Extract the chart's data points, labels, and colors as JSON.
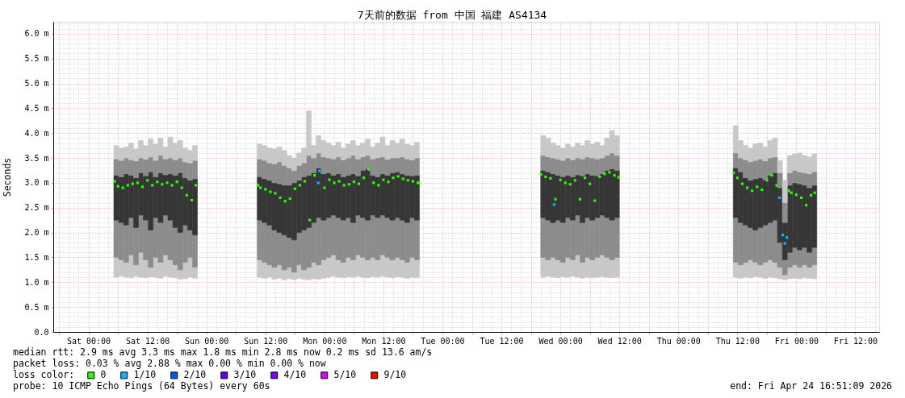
{
  "chart_data": {
    "type": "bar",
    "title": "7天前的数据 from 中国 福建 AS4134",
    "ylabel": "Seconds",
    "legend_title": "loss color:",
    "legend": "bottom left",
    "grid": true,
    "marker": "square",
    "annotations": [
      "median rtt:  2.9 ms avg  3.3 ms max  1.8 ms min  2.8 ms now  0.2 ms sd  13.6   am/s",
      "packet loss: 0.03 % avg  2.88 % max  0.00 % min  0.00 % now",
      "probe:       10 ICMP Echo Pings (64 Bytes) every 60s",
      "end: Fri Apr 24 16:51:09 2026"
    ],
    "xlim": [
      "2026-04-17T16:51",
      "2026-04-24T16:51"
    ],
    "xticks": [
      {
        "value": "2026-04-17T18:00",
        "label": null
      },
      {
        "value": "2026-04-18T00:00",
        "label": "Sat 00:00"
      },
      {
        "value": "2026-04-18T06:00",
        "label": null
      },
      {
        "value": "2026-04-18T12:00",
        "label": "Sat 12:00"
      },
      {
        "value": "2026-04-18T18:00",
        "label": null
      },
      {
        "value": "2026-04-19T00:00",
        "label": "Sun 00:00"
      },
      {
        "value": "2026-04-19T06:00",
        "label": null
      },
      {
        "value": "2026-04-19T12:00",
        "label": "Sun 12:00"
      },
      {
        "value": "2026-04-19T18:00",
        "label": null
      },
      {
        "value": "2026-04-20T00:00",
        "label": "Mon 00:00"
      },
      {
        "value": "2026-04-20T06:00",
        "label": null
      },
      {
        "value": "2026-04-20T12:00",
        "label": "Mon 12:00"
      },
      {
        "value": "2026-04-20T18:00",
        "label": null
      },
      {
        "value": "2026-04-21T00:00",
        "label": "Tue 00:00"
      },
      {
        "value": "2026-04-21T06:00",
        "label": null
      },
      {
        "value": "2026-04-21T12:00",
        "label": "Tue 12:00"
      },
      {
        "value": "2026-04-21T18:00",
        "label": null
      },
      {
        "value": "2026-04-22T00:00",
        "label": "Wed 00:00"
      },
      {
        "value": "2026-04-22T06:00",
        "label": null
      },
      {
        "value": "2026-04-22T12:00",
        "label": "Wed 12:00"
      },
      {
        "value": "2026-04-22T18:00",
        "label": null
      },
      {
        "value": "2026-04-23T00:00",
        "label": "Thu 00:00"
      },
      {
        "value": "2026-04-23T06:00",
        "label": null
      },
      {
        "value": "2026-04-23T12:00",
        "label": "Thu 12:00"
      },
      {
        "value": "2026-04-23T18:00",
        "label": null
      },
      {
        "value": "2026-04-24T00:00",
        "label": "Fri 00:00"
      },
      {
        "value": "2026-04-24T06:00",
        "label": null
      },
      {
        "value": "2026-04-24T12:00",
        "label": "Fri 12:00"
      }
    ],
    "ylim": [
      0,
      6.24
    ],
    "yticks": [
      {
        "value": 0,
        "label": "0.0"
      },
      {
        "value": 0.5,
        "label": "0.5 m"
      },
      {
        "value": 1.0,
        "label": "1.0 m"
      },
      {
        "value": 1.5,
        "label": "1.5 m"
      },
      {
        "value": 2.0,
        "label": "2.0 m"
      },
      {
        "value": 2.5,
        "label": "2.5 m"
      },
      {
        "value": 3.0,
        "label": "3.0 m"
      },
      {
        "value": 3.5,
        "label": "3.5 m"
      },
      {
        "value": 4.0,
        "label": "4.0 m"
      },
      {
        "value": 4.5,
        "label": "4.5 m"
      },
      {
        "value": 5.0,
        "label": "5.0 m"
      },
      {
        "value": 5.5,
        "label": "5.5 m"
      },
      {
        "value": 6.0,
        "label": "6.0 m"
      }
    ],
    "x": [
      "2026-04-18T05:40",
      "2026-04-18T06:40",
      "2026-04-18T07:40",
      "2026-04-18T08:40",
      "2026-04-18T09:40",
      "2026-04-18T10:40",
      "2026-04-18T11:40",
      "2026-04-18T12:40",
      "2026-04-18T13:40",
      "2026-04-18T14:40",
      "2026-04-18T15:40",
      "2026-04-18T16:40",
      "2026-04-18T17:40",
      "2026-04-18T18:40",
      "2026-04-18T19:40",
      "2026-04-18T20:40",
      "2026-04-18T21:40",
      "2026-04-19T10:50",
      "2026-04-19T11:50",
      "2026-04-19T12:50",
      "2026-04-19T13:50",
      "2026-04-19T14:50",
      "2026-04-19T15:50",
      "2026-04-19T16:50",
      "2026-04-19T17:50",
      "2026-04-19T18:50",
      "2026-04-19T19:50",
      "2026-04-19T20:50",
      "2026-04-19T21:50",
      "2026-04-19T22:50",
      "2026-04-19T23:50",
      "2026-04-20T00:50",
      "2026-04-20T01:50",
      "2026-04-20T02:50",
      "2026-04-20T03:50",
      "2026-04-20T04:50",
      "2026-04-20T05:50",
      "2026-04-20T06:50",
      "2026-04-20T07:50",
      "2026-04-20T08:50",
      "2026-04-20T09:50",
      "2026-04-20T10:50",
      "2026-04-20T11:50",
      "2026-04-20T12:50",
      "2026-04-20T13:50",
      "2026-04-20T14:50",
      "2026-04-20T15:50",
      "2026-04-20T16:50",
      "2026-04-20T17:50",
      "2026-04-20T18:50",
      "2026-04-21T20:30",
      "2026-04-21T21:30",
      "2026-04-21T22:30",
      "2026-04-21T23:30",
      "2026-04-22T00:30",
      "2026-04-22T01:30",
      "2026-04-22T02:30",
      "2026-04-22T03:30",
      "2026-04-22T04:30",
      "2026-04-22T05:30",
      "2026-04-22T06:30",
      "2026-04-22T07:30",
      "2026-04-22T08:30",
      "2026-04-22T09:30",
      "2026-04-22T10:30",
      "2026-04-22T11:30",
      "2026-04-23T11:40",
      "2026-04-23T12:40",
      "2026-04-23T13:40",
      "2026-04-23T14:40",
      "2026-04-23T15:40",
      "2026-04-23T16:40",
      "2026-04-23T17:40",
      "2026-04-23T18:40",
      "2026-04-23T19:40",
      "2026-04-23T20:40",
      "2026-04-23T21:40",
      "2026-04-23T22:40",
      "2026-04-23T23:40",
      "2026-04-24T00:40",
      "2026-04-24T01:40",
      "2026-04-24T02:40",
      "2026-04-24T03:40"
    ],
    "series": [
      {
        "color": "#c8c8c8",
        "base": [
          1.1,
          1.12,
          1.1,
          1.09,
          1.12,
          1.1,
          1.09,
          1.11,
          1.1,
          1.08,
          1.12,
          1.1,
          1.09,
          1.06,
          1.07,
          1.1,
          1.08,
          1.1,
          1.08,
          1.1,
          1.06,
          1.08,
          1.05,
          1.07,
          1.05,
          1.08,
          1.06,
          1.05,
          1.07,
          1.06,
          1.08,
          1.1,
          1.12,
          1.1,
          1.09,
          1.11,
          1.1,
          1.12,
          1.1,
          1.09,
          1.11,
          1.1,
          1.12,
          1.1,
          1.09,
          1.11,
          1.1,
          1.08,
          1.1,
          1.09,
          1.1,
          1.12,
          1.1,
          1.09,
          1.11,
          1.1,
          1.12,
          1.1,
          1.08,
          1.1,
          1.09,
          1.1,
          1.11,
          1.1,
          1.09,
          1.1,
          1.1,
          1.08,
          1.1,
          1.09,
          1.11,
          1.1,
          1.08,
          1.1,
          1.09,
          1.07,
          1.05,
          1.07,
          1.08,
          1.07,
          1.09,
          1.08,
          1.07
        ],
        "values": [
          0.4,
          0.33,
          0.3,
          0.46,
          0.23,
          0.5,
          0.36,
          0.19,
          0.4,
          0.32,
          0.43,
          0.35,
          0.26,
          0.19,
          0.33,
          0.4,
          0.22,
          0.35,
          0.32,
          0.25,
          0.24,
          0.27,
          0.2,
          0.23,
          0.15,
          0.27,
          0.19,
          0.25,
          0.33,
          0.29,
          0.37,
          0.4,
          0.43,
          0.35,
          0.31,
          0.39,
          0.35,
          0.43,
          0.4,
          0.36,
          0.39,
          0.35,
          0.43,
          0.4,
          0.36,
          0.39,
          0.35,
          0.32,
          0.4,
          0.36,
          0.4,
          0.33,
          0.4,
          0.36,
          0.29,
          0.4,
          0.33,
          0.45,
          0.32,
          0.4,
          0.36,
          0.4,
          0.44,
          0.4,
          0.36,
          0.4,
          0.3,
          0.27,
          0.3,
          0.36,
          0.29,
          0.25,
          0.32,
          0.35,
          0.31,
          0.23,
          0.1,
          0.23,
          0.27,
          0.23,
          0.26,
          0.22,
          0.28
        ]
      },
      {
        "color": "#8c8c8c",
        "base": [
          1.5,
          1.45,
          1.4,
          1.55,
          1.35,
          1.6,
          1.45,
          1.3,
          1.5,
          1.4,
          1.55,
          1.45,
          1.35,
          1.25,
          1.4,
          1.5,
          1.3,
          1.45,
          1.4,
          1.35,
          1.3,
          1.35,
          1.25,
          1.3,
          1.2,
          1.35,
          1.25,
          1.3,
          1.4,
          1.35,
          1.45,
          1.5,
          1.55,
          1.45,
          1.4,
          1.5,
          1.45,
          1.55,
          1.5,
          1.45,
          1.5,
          1.45,
          1.55,
          1.5,
          1.45,
          1.5,
          1.45,
          1.4,
          1.5,
          1.45,
          1.5,
          1.45,
          1.5,
          1.45,
          1.4,
          1.5,
          1.45,
          1.55,
          1.4,
          1.5,
          1.45,
          1.5,
          1.55,
          1.5,
          1.45,
          1.5,
          1.4,
          1.35,
          1.4,
          1.45,
          1.4,
          1.35,
          1.4,
          1.45,
          1.4,
          1.3,
          1.15,
          1.3,
          1.35,
          1.3,
          1.35,
          1.3,
          1.35
        ],
        "values": [
          0.75,
          0.75,
          0.75,
          0.75,
          0.75,
          0.75,
          0.8,
          0.75,
          0.8,
          0.8,
          0.8,
          0.8,
          0.75,
          0.75,
          0.75,
          0.55,
          0.65,
          0.8,
          0.8,
          0.8,
          0.75,
          0.65,
          0.7,
          0.6,
          0.65,
          0.65,
          0.8,
          0.8,
          0.8,
          0.95,
          0.8,
          0.8,
          0.8,
          0.85,
          0.85,
          0.8,
          0.75,
          0.8,
          0.8,
          0.8,
          0.85,
          0.85,
          0.8,
          0.8,
          0.8,
          0.8,
          0.8,
          0.8,
          0.8,
          0.8,
          0.8,
          0.8,
          0.7,
          0.8,
          0.8,
          0.8,
          0.8,
          0.8,
          0.8,
          0.8,
          0.8,
          0.8,
          0.8,
          0.8,
          0.8,
          0.8,
          0.9,
          0.85,
          0.75,
          0.65,
          0.65,
          0.75,
          0.75,
          0.75,
          0.85,
          0.5,
          0.3,
          0.3,
          0.35,
          0.35,
          0.35,
          0.3,
          0.35
        ]
      },
      {
        "color": "#363636",
        "base": [
          2.25,
          2.2,
          2.15,
          2.3,
          2.1,
          2.35,
          2.25,
          2.05,
          2.3,
          2.2,
          2.35,
          2.25,
          2.1,
          2.0,
          2.15,
          2.05,
          1.95,
          2.25,
          2.2,
          2.15,
          2.05,
          2.0,
          1.95,
          1.9,
          1.85,
          2.0,
          2.05,
          2.1,
          2.2,
          2.3,
          2.25,
          2.3,
          2.35,
          2.3,
          2.25,
          2.3,
          2.2,
          2.35,
          2.3,
          2.25,
          2.35,
          2.3,
          2.35,
          2.3,
          2.25,
          2.3,
          2.25,
          2.2,
          2.3,
          2.25,
          2.3,
          2.25,
          2.2,
          2.25,
          2.2,
          2.3,
          2.25,
          2.35,
          2.2,
          2.3,
          2.25,
          2.3,
          2.35,
          2.3,
          2.25,
          2.3,
          2.3,
          2.2,
          2.15,
          2.1,
          2.05,
          2.1,
          2.15,
          2.2,
          2.25,
          1.8,
          1.45,
          1.6,
          1.7,
          1.65,
          1.7,
          1.6,
          1.7
        ],
        "values": [
          0.9,
          0.92,
          1.03,
          0.85,
          1.0,
          0.85,
          0.89,
          1.17,
          0.82,
          1.0,
          0.81,
          0.93,
          1.05,
          1.2,
          0.95,
          1.0,
          1.13,
          0.87,
          0.88,
          0.9,
          0.95,
          0.98,
          1.0,
          1.05,
          1.15,
          1.05,
          1.07,
          1.05,
          1.0,
          1.0,
          0.93,
          0.9,
          0.8,
          0.88,
          0.87,
          0.85,
          0.98,
          0.79,
          0.95,
          1.03,
          0.8,
          0.82,
          0.83,
          0.85,
          0.95,
          0.92,
          0.93,
          0.95,
          0.84,
          0.9,
          0.95,
          0.97,
          0.98,
          0.9,
          0.92,
          0.85,
          0.87,
          0.81,
          0.94,
          0.88,
          0.9,
          0.84,
          0.83,
          0.95,
          1.03,
          0.95,
          1.0,
          1.02,
          0.95,
          0.95,
          1.03,
          1.0,
          0.91,
          0.95,
          0.95,
          1.1,
          0.75,
          1.35,
          1.3,
          1.33,
          1.25,
          1.3,
          1.25
        ]
      },
      {
        "color": "#8c8c8c",
        "base": [
          3.15,
          3.12,
          3.18,
          3.15,
          3.1,
          3.2,
          3.14,
          3.22,
          3.12,
          3.2,
          3.16,
          3.18,
          3.15,
          3.2,
          3.1,
          3.05,
          3.08,
          3.12,
          3.08,
          3.05,
          3.0,
          2.98,
          2.95,
          2.95,
          3.0,
          3.05,
          3.12,
          3.15,
          3.2,
          3.3,
          3.18,
          3.2,
          3.15,
          3.18,
          3.12,
          3.15,
          3.18,
          3.14,
          3.25,
          3.28,
          3.15,
          3.12,
          3.18,
          3.15,
          3.2,
          3.22,
          3.18,
          3.15,
          3.14,
          3.15,
          3.25,
          3.22,
          3.18,
          3.15,
          3.12,
          3.15,
          3.12,
          3.16,
          3.14,
          3.18,
          3.15,
          3.14,
          3.18,
          3.25,
          3.28,
          3.25,
          3.3,
          3.22,
          3.1,
          3.05,
          3.08,
          3.1,
          3.06,
          3.15,
          3.2,
          2.9,
          2.2,
          2.95,
          3.0,
          2.98,
          2.95,
          2.9,
          2.95
        ],
        "values": [
          0.33,
          0.33,
          0.32,
          0.31,
          0.34,
          0.3,
          0.33,
          0.3,
          0.33,
          0.35,
          0.32,
          0.32,
          0.31,
          0.3,
          0.32,
          0.35,
          0.37,
          0.36,
          0.37,
          0.35,
          0.38,
          0.44,
          0.4,
          0.35,
          0.25,
          0.3,
          0.28,
          0.4,
          0.3,
          0.3,
          0.34,
          0.3,
          0.33,
          0.34,
          0.34,
          0.35,
          0.37,
          0.34,
          0.27,
          0.27,
          0.33,
          0.38,
          0.34,
          0.32,
          0.3,
          0.28,
          0.34,
          0.33,
          0.32,
          0.35,
          0.3,
          0.3,
          0.32,
          0.33,
          0.33,
          0.35,
          0.34,
          0.34,
          0.34,
          0.34,
          0.35,
          0.34,
          0.32,
          0.3,
          0.32,
          0.3,
          0.3,
          0.28,
          0.36,
          0.37,
          0.37,
          0.38,
          0.38,
          0.35,
          0.32,
          0.3,
          0.4,
          0.25,
          0.25,
          0.24,
          0.25,
          0.28,
          0.27
        ]
      },
      {
        "color": "#c8c8c8",
        "base": [
          3.48,
          3.45,
          3.5,
          3.46,
          3.44,
          3.5,
          3.47,
          3.52,
          3.45,
          3.55,
          3.48,
          3.5,
          3.46,
          3.5,
          3.42,
          3.4,
          3.45,
          3.48,
          3.45,
          3.4,
          3.38,
          3.42,
          3.35,
          3.3,
          3.25,
          3.35,
          3.4,
          3.55,
          3.5,
          3.6,
          3.52,
          3.5,
          3.48,
          3.52,
          3.46,
          3.5,
          3.55,
          3.48,
          3.52,
          3.55,
          3.48,
          3.5,
          3.52,
          3.47,
          3.5,
          3.5,
          3.52,
          3.48,
          3.46,
          3.5,
          3.55,
          3.52,
          3.5,
          3.48,
          3.45,
          3.5,
          3.46,
          3.5,
          3.48,
          3.52,
          3.5,
          3.48,
          3.5,
          3.55,
          3.6,
          3.55,
          3.6,
          3.5,
          3.46,
          3.42,
          3.45,
          3.48,
          3.44,
          3.5,
          3.52,
          3.2,
          2.6,
          3.2,
          3.25,
          3.22,
          3.2,
          3.18,
          3.22
        ],
        "values": [
          0.27,
          0.25,
          0.22,
          0.34,
          0.24,
          0.35,
          0.28,
          0.36,
          0.33,
          0.35,
          0.24,
          0.42,
          0.34,
          0.35,
          0.28,
          0.25,
          0.3,
          0.3,
          0.3,
          0.3,
          0.3,
          0.3,
          0.3,
          0.25,
          0.25,
          0.25,
          0.3,
          0.9,
          0.25,
          0.35,
          0.33,
          0.3,
          0.27,
          0.3,
          0.24,
          0.28,
          0.3,
          0.27,
          0.28,
          0.33,
          0.24,
          0.3,
          0.4,
          0.28,
          0.35,
          0.3,
          0.36,
          0.3,
          0.29,
          0.32,
          0.4,
          0.38,
          0.3,
          0.27,
          0.25,
          0.28,
          0.26,
          0.3,
          0.27,
          0.33,
          0.28,
          0.34,
          0.25,
          0.35,
          0.45,
          0.4,
          0.55,
          0.35,
          0.29,
          0.28,
          0.33,
          0.32,
          0.28,
          0.35,
          0.38,
          0.25,
          0.45,
          0.35,
          0.33,
          0.38,
          0.35,
          0.34,
          0.36
        ]
      },
      {
        "name": "0",
        "type": "scatter",
        "color": "#26ff00",
        "x": [
          "2026-04-18T05:20",
          "2026-04-18T06:00",
          "2026-04-18T07:00",
          "2026-04-18T08:00",
          "2026-04-18T09:00",
          "2026-04-18T10:00",
          "2026-04-18T11:00",
          "2026-04-18T12:00",
          "2026-04-18T13:00",
          "2026-04-18T14:00",
          "2026-04-18T15:00",
          "2026-04-18T16:00",
          "2026-04-18T17:00",
          "2026-04-18T18:00",
          "2026-04-18T19:00",
          "2026-04-18T20:00",
          "2026-04-18T21:00",
          "2026-04-18T21:50",
          "2026-04-19T10:30",
          "2026-04-19T11:00",
          "2026-04-19T12:00",
          "2026-04-19T13:00",
          "2026-04-19T14:00",
          "2026-04-19T15:00",
          "2026-04-19T16:00",
          "2026-04-19T17:00",
          "2026-04-19T18:00",
          "2026-04-19T19:00",
          "2026-04-19T20:00",
          "2026-04-19T21:00",
          "2026-04-19T22:00",
          "2026-04-20T00:00",
          "2026-04-20T01:00",
          "2026-04-20T02:00",
          "2026-04-20T03:00",
          "2026-04-20T04:00",
          "2026-04-20T05:00",
          "2026-04-20T06:00",
          "2026-04-20T07:00",
          "2026-04-20T08:00",
          "2026-04-20T09:00",
          "2026-04-20T10:00",
          "2026-04-20T11:00",
          "2026-04-20T12:00",
          "2026-04-20T13:00",
          "2026-04-20T14:00",
          "2026-04-20T15:00",
          "2026-04-20T16:00",
          "2026-04-20T17:00",
          "2026-04-20T18:00",
          "2026-04-20T19:00",
          "2026-04-20T19:15",
          "2026-04-21T20:05",
          "2026-04-21T21:00",
          "2026-04-21T22:00",
          "2026-04-21T23:00",
          "2026-04-22T00:00",
          "2026-04-22T01:00",
          "2026-04-22T02:00",
          "2026-04-22T03:00",
          "2026-04-22T04:00",
          "2026-04-22T05:00",
          "2026-04-22T06:00",
          "2026-04-22T07:00",
          "2026-04-22T08:00",
          "2026-04-22T09:00",
          "2026-04-22T10:00",
          "2026-04-22T11:00",
          "2026-04-22T11:50",
          "2026-04-23T11:15",
          "2026-04-23T12:00",
          "2026-04-23T13:00",
          "2026-04-23T14:00",
          "2026-04-23T15:00",
          "2026-04-23T16:00",
          "2026-04-23T17:00",
          "2026-04-23T18:00",
          "2026-04-23T19:00",
          "2026-04-23T20:00",
          "2026-04-23T22:30",
          "2026-04-23T23:00",
          "2026-04-24T00:00",
          "2026-04-24T01:00",
          "2026-04-24T02:00",
          "2026-04-24T03:00",
          "2026-04-24T03:45"
        ],
        "values": [
          3.03,
          2.93,
          2.9,
          2.95,
          2.98,
          3.0,
          2.92,
          3.05,
          2.95,
          3.02,
          2.97,
          3.0,
          2.95,
          3.02,
          2.9,
          2.75,
          2.65,
          2.95,
          2.95,
          2.9,
          2.87,
          2.82,
          2.79,
          2.7,
          2.63,
          2.68,
          2.88,
          2.95,
          3.03,
          2.25,
          3.15,
          2.9,
          3.06,
          3.0,
          3.03,
          2.95,
          2.97,
          3.02,
          2.98,
          3.1,
          3.27,
          3.0,
          2.95,
          3.06,
          3.02,
          3.1,
          3.13,
          3.08,
          3.05,
          3.03,
          3.0,
          3.0,
          3.17,
          3.12,
          3.09,
          2.67,
          3.06,
          3.0,
          2.97,
          3.05,
          2.67,
          3.1,
          2.98,
          2.64,
          3.12,
          3.18,
          3.21,
          3.15,
          3.11,
          3.2,
          3.1,
          2.98,
          2.9,
          2.84,
          2.92,
          2.86,
          3.05,
          3.15,
          2.95,
          2.84,
          2.8,
          2.76,
          2.7,
          2.55,
          2.75,
          2.8
        ]
      },
      {
        "name": "1/10",
        "type": "scatter",
        "color": "#00b8ff",
        "x": [
          "2026-04-19T22:45",
          "2026-04-19T23:00",
          "2026-04-21T22:45",
          "2026-04-23T20:35",
          "2026-04-23T21:15",
          "2026-04-23T21:40",
          "2026-04-23T22:05"
        ],
        "values": [
          3.0,
          3.24,
          2.56,
          2.7,
          1.95,
          1.78,
          1.9
        ]
      },
      {
        "name": "2/10",
        "type": "scatter",
        "color": "#0059ff",
        "values": [
          null,
          null,
          null,
          null,
          null,
          null,
          null,
          null,
          null,
          null,
          null,
          null,
          null,
          null,
          null,
          null,
          null,
          null,
          null,
          null,
          null,
          null,
          null,
          null,
          null,
          null,
          null,
          null,
          null,
          null,
          null,
          null,
          null,
          null,
          null,
          null,
          null,
          null,
          null,
          null,
          null,
          null,
          null,
          null,
          null,
          null,
          null,
          null,
          null,
          null,
          null,
          null,
          null,
          null,
          null,
          null,
          null,
          null,
          null,
          null,
          null,
          null,
          null,
          null,
          null,
          null,
          null,
          null,
          null,
          null,
          null,
          null,
          null,
          null,
          null,
          null,
          null,
          null,
          null,
          null,
          null,
          null,
          null
        ]
      },
      {
        "name": "3/10",
        "type": "scatter",
        "color": "#5e00ff",
        "values": [
          null,
          null,
          null,
          null,
          null,
          null,
          null,
          null,
          null,
          null,
          null,
          null,
          null,
          null,
          null,
          null,
          null,
          null,
          null,
          null,
          null,
          null,
          null,
          null,
          null,
          null,
          null,
          null,
          null,
          null,
          null,
          null,
          null,
          null,
          null,
          null,
          null,
          null,
          null,
          null,
          null,
          null,
          null,
          null,
          null,
          null,
          null,
          null,
          null,
          null,
          null,
          null,
          null,
          null,
          null,
          null,
          null,
          null,
          null,
          null,
          null,
          null,
          null,
          null,
          null,
          null,
          null,
          null,
          null,
          null,
          null,
          null,
          null,
          null,
          null,
          null,
          null,
          null,
          null,
          null,
          null,
          null,
          null
        ]
      },
      {
        "name": "4/10",
        "type": "scatter",
        "color": "#7e00ff",
        "values": [
          null,
          null,
          null,
          null,
          null,
          null,
          null,
          null,
          null,
          null,
          null,
          null,
          null,
          null,
          null,
          null,
          null,
          null,
          null,
          null,
          null,
          null,
          null,
          null,
          null,
          null,
          null,
          null,
          null,
          null,
          null,
          null,
          null,
          null,
          null,
          null,
          null,
          null,
          null,
          null,
          null,
          null,
          null,
          null,
          null,
          null,
          null,
          null,
          null,
          null,
          null,
          null,
          null,
          null,
          null,
          null,
          null,
          null,
          null,
          null,
          null,
          null,
          null,
          null,
          null,
          null,
          null,
          null,
          null,
          null,
          null,
          null,
          null,
          null,
          null,
          null,
          null,
          null,
          null,
          null,
          null,
          null,
          null
        ]
      },
      {
        "name": "5/10",
        "type": "scatter",
        "color": "#dd00ff",
        "values": [
          null,
          null,
          null,
          null,
          null,
          null,
          null,
          null,
          null,
          null,
          null,
          null,
          null,
          null,
          null,
          null,
          null,
          null,
          null,
          null,
          null,
          null,
          null,
          null,
          null,
          null,
          null,
          null,
          null,
          null,
          null,
          null,
          null,
          null,
          null,
          null,
          null,
          null,
          null,
          null,
          null,
          null,
          null,
          null,
          null,
          null,
          null,
          null,
          null,
          null,
          null,
          null,
          null,
          null,
          null,
          null,
          null,
          null,
          null,
          null,
          null,
          null,
          null,
          null,
          null,
          null,
          null,
          null,
          null,
          null,
          null,
          null,
          null,
          null,
          null,
          null,
          null,
          null,
          null,
          null,
          null,
          null,
          null
        ]
      },
      {
        "name": "9/10",
        "type": "scatter",
        "color": "#ff0000",
        "values": [
          null,
          null,
          null,
          null,
          null,
          null,
          null,
          null,
          null,
          null,
          null,
          null,
          null,
          null,
          null,
          null,
          null,
          null,
          null,
          null,
          null,
          null,
          null,
          null,
          null,
          null,
          null,
          null,
          null,
          null,
          null,
          null,
          null,
          null,
          null,
          null,
          null,
          null,
          null,
          null,
          null,
          null,
          null,
          null,
          null,
          null,
          null,
          null,
          null,
          null,
          null,
          null,
          null,
          null,
          null,
          null,
          null,
          null,
          null,
          null,
          null,
          null,
          null,
          null,
          null,
          null,
          null,
          null,
          null,
          null,
          null,
          null,
          null,
          null,
          null,
          null,
          null,
          null,
          null,
          null,
          null,
          null,
          null
        ]
      }
    ]
  }
}
